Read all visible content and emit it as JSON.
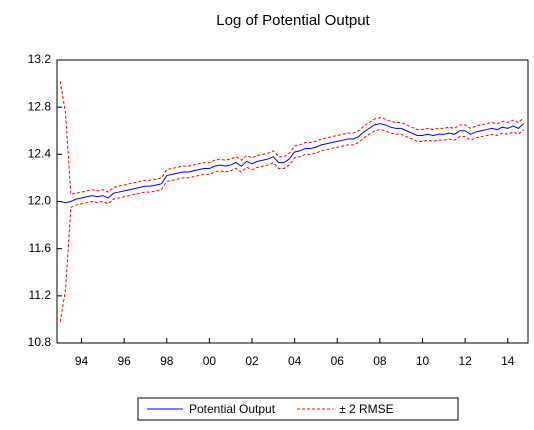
{
  "chart_data": {
    "type": "line",
    "title": "Log of Potential Output",
    "x": [
      1993,
      1993.25,
      1993.5,
      1993.75,
      1994,
      1994.25,
      1994.5,
      1994.75,
      1995,
      1995.25,
      1995.5,
      1995.75,
      1996,
      1996.25,
      1996.5,
      1996.75,
      1997,
      1997.25,
      1997.5,
      1997.75,
      1998,
      1998.25,
      1998.5,
      1998.75,
      1999,
      1999.25,
      1999.5,
      1999.75,
      2000,
      2000.25,
      2000.5,
      2000.75,
      2001,
      2001.25,
      2001.5,
      2001.75,
      2002,
      2002.25,
      2002.5,
      2002.75,
      2003,
      2003.25,
      2003.5,
      2003.75,
      2004,
      2004.25,
      2004.5,
      2004.75,
      2005,
      2005.25,
      2005.5,
      2005.75,
      2006,
      2006.25,
      2006.5,
      2006.75,
      2007,
      2007.25,
      2007.5,
      2007.75,
      2008,
      2008.25,
      2008.5,
      2008.75,
      2009,
      2009.25,
      2009.5,
      2009.75,
      2010,
      2010.25,
      2010.5,
      2010.75,
      2011,
      2011.25,
      2011.5,
      2011.75,
      2012,
      2012.25,
      2012.5,
      2012.75,
      2013,
      2013.25,
      2013.5,
      2013.75,
      2014,
      2014.25,
      2014.5,
      2014.75
    ],
    "series": [
      {
        "name": "Potential Output",
        "color": "#0000ff",
        "style": "solid",
        "values": [
          12.0,
          11.99,
          12.0,
          12.02,
          12.03,
          12.04,
          12.05,
          12.04,
          12.05,
          12.03,
          12.07,
          12.08,
          12.09,
          12.1,
          12.11,
          12.12,
          12.13,
          12.13,
          12.14,
          12.15,
          12.22,
          12.23,
          12.24,
          12.25,
          12.25,
          12.26,
          12.27,
          12.28,
          12.28,
          12.3,
          12.31,
          12.3,
          12.31,
          12.33,
          12.3,
          12.34,
          12.32,
          12.34,
          12.35,
          12.36,
          12.38,
          12.33,
          12.33,
          12.36,
          12.42,
          12.43,
          12.45,
          12.45,
          12.46,
          12.48,
          12.49,
          12.5,
          12.51,
          12.52,
          12.53,
          12.53,
          12.55,
          12.59,
          12.62,
          12.65,
          12.66,
          12.65,
          12.63,
          12.62,
          12.62,
          12.6,
          12.58,
          12.56,
          12.56,
          12.57,
          12.56,
          12.57,
          12.57,
          12.58,
          12.57,
          12.6,
          12.6,
          12.57,
          12.59,
          12.6,
          12.61,
          12.62,
          12.61,
          12.63,
          12.62,
          12.64,
          12.62,
          12.66
        ]
      },
      {
        "name": "± 2 RMSE",
        "color": "#ff0000",
        "style": "dashed",
        "upper": [
          13.02,
          12.75,
          12.06,
          12.07,
          12.08,
          12.09,
          12.1,
          12.09,
          12.1,
          12.08,
          12.12,
          12.13,
          12.14,
          12.15,
          12.16,
          12.17,
          12.18,
          12.18,
          12.19,
          12.2,
          12.27,
          12.28,
          12.29,
          12.3,
          12.3,
          12.31,
          12.32,
          12.33,
          12.33,
          12.35,
          12.36,
          12.35,
          12.36,
          12.38,
          12.35,
          12.39,
          12.37,
          12.39,
          12.4,
          12.41,
          12.43,
          12.38,
          12.38,
          12.41,
          12.47,
          12.48,
          12.5,
          12.5,
          12.51,
          12.53,
          12.54,
          12.55,
          12.56,
          12.57,
          12.58,
          12.58,
          12.6,
          12.64,
          12.67,
          12.7,
          12.71,
          12.7,
          12.68,
          12.67,
          12.67,
          12.65,
          12.63,
          12.61,
          12.61,
          12.62,
          12.61,
          12.62,
          12.62,
          12.63,
          12.62,
          12.65,
          12.65,
          12.62,
          12.64,
          12.65,
          12.66,
          12.67,
          12.66,
          12.68,
          12.67,
          12.69,
          12.67,
          12.71
        ],
        "lower": [
          10.98,
          11.25,
          11.95,
          11.97,
          11.98,
          11.99,
          12.0,
          11.99,
          12.0,
          11.98,
          12.02,
          12.03,
          12.04,
          12.05,
          12.06,
          12.07,
          12.08,
          12.08,
          12.09,
          12.1,
          12.17,
          12.18,
          12.19,
          12.2,
          12.2,
          12.21,
          12.22,
          12.23,
          12.23,
          12.25,
          12.26,
          12.25,
          12.26,
          12.28,
          12.25,
          12.29,
          12.27,
          12.29,
          12.3,
          12.31,
          12.33,
          12.28,
          12.28,
          12.31,
          12.37,
          12.38,
          12.4,
          12.4,
          12.41,
          12.43,
          12.44,
          12.45,
          12.46,
          12.47,
          12.48,
          12.48,
          12.5,
          12.54,
          12.57,
          12.6,
          12.61,
          12.6,
          12.58,
          12.57,
          12.57,
          12.55,
          12.53,
          12.51,
          12.51,
          12.52,
          12.51,
          12.52,
          12.52,
          12.53,
          12.52,
          12.55,
          12.55,
          12.52,
          12.54,
          12.55,
          12.56,
          12.57,
          12.56,
          12.58,
          12.57,
          12.59,
          12.57,
          12.61
        ]
      }
    ],
    "xlim": [
      1992.85,
      2014.95
    ],
    "xticks": [
      {
        "value": 1994,
        "label": "94"
      },
      {
        "value": 1996,
        "label": "96"
      },
      {
        "value": 1998,
        "label": "98"
      },
      {
        "value": 2000,
        "label": "00"
      },
      {
        "value": 2002,
        "label": "02"
      },
      {
        "value": 2004,
        "label": "04"
      },
      {
        "value": 2006,
        "label": "06"
      },
      {
        "value": 2008,
        "label": "08"
      },
      {
        "value": 2010,
        "label": "10"
      },
      {
        "value": 2012,
        "label": "12"
      },
      {
        "value": 2014,
        "label": "14"
      }
    ],
    "ylim": [
      10.8,
      13.2
    ],
    "yticks": [
      10.8,
      11.2,
      11.6,
      {
        "value": 12,
        "label": "12.0"
      },
      12.4,
      12.8,
      13.2
    ],
    "legend": "bottom"
  }
}
